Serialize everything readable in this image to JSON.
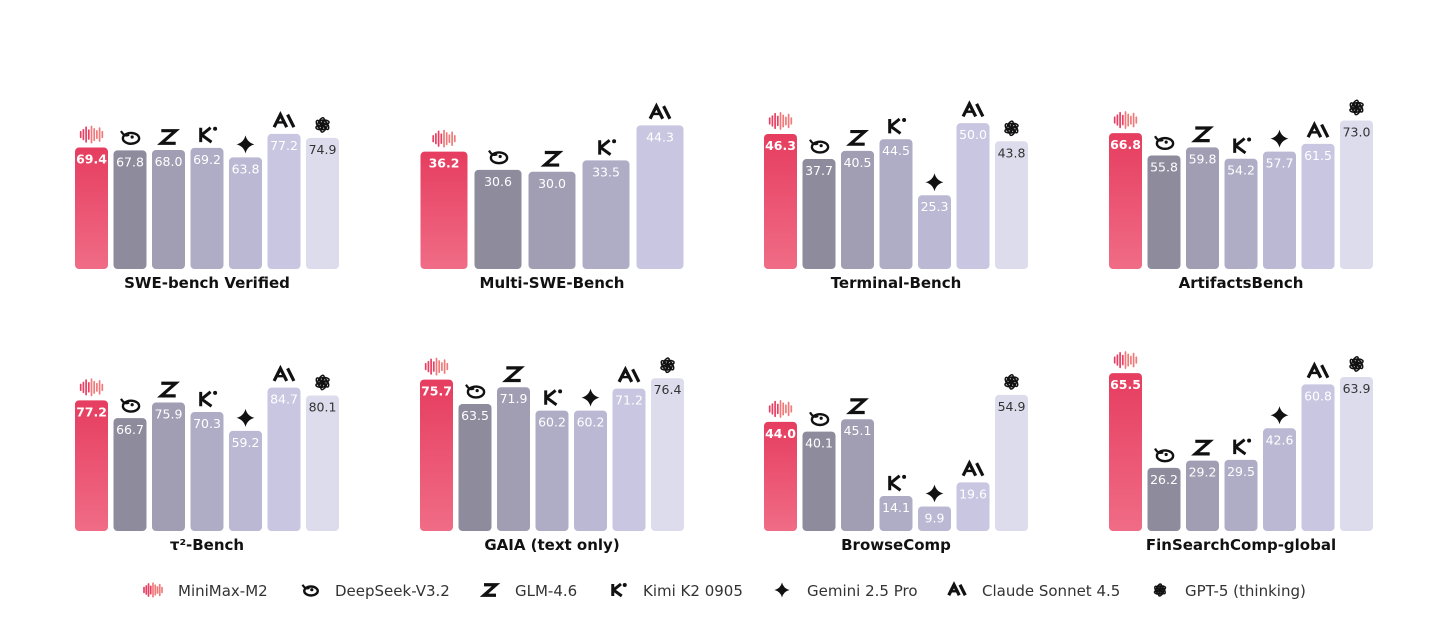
{
  "models": [
    {
      "id": "minimax",
      "name": "MiniMax-M2",
      "icon": "minimax-wave-icon",
      "color_top": "#e63d5f",
      "color_bottom": "#f06c86",
      "label_color": "#ffffff"
    },
    {
      "id": "deepseek",
      "name": "DeepSeek-V3.2",
      "icon": "deepseek-whale-icon",
      "color_top": "#8e8b9d",
      "color_bottom": "#8e8b9d",
      "label_color": "#ffffff"
    },
    {
      "id": "glm",
      "name": "GLM-4.6",
      "icon": "glm-z-icon",
      "color_top": "#a19eb4",
      "color_bottom": "#a19eb4",
      "label_color": "#ffffff"
    },
    {
      "id": "kimi",
      "name": "Kimi K2 0905",
      "icon": "kimi-k-icon",
      "color_top": "#afacc6",
      "color_bottom": "#afacc6",
      "label_color": "#ffffff"
    },
    {
      "id": "gemini",
      "name": "Gemini 2.5 Pro",
      "icon": "gemini-sparkle-icon",
      "color_top": "#bbb8d4",
      "color_bottom": "#bbb8d4",
      "label_color": "#ffffff"
    },
    {
      "id": "claude",
      "name": "Claude Sonnet 4.5",
      "icon": "anthropic-icon",
      "color_top": "#c8c6e0",
      "color_bottom": "#c8c6e0",
      "label_color": "#ffffff"
    },
    {
      "id": "gpt5",
      "name": "GPT-5 (thinking)",
      "icon": "openai-icon",
      "color_top": "#dddcec",
      "color_bottom": "#dddcec",
      "label_color": "#333333"
    }
  ],
  "chart_data": [
    {
      "type": "bar",
      "title": "SWE-bench Verified",
      "categories": [
        "MiniMax-M2",
        "DeepSeek-V3.2",
        "GLM-4.6",
        "Kimi K2 0905",
        "Gemini 2.5 Pro",
        "Claude Sonnet 4.5",
        "GPT-5 (thinking)"
      ],
      "values": [
        69.4,
        67.8,
        68.0,
        69.2,
        63.8,
        77.2,
        74.9
      ],
      "labels": [
        "69.4",
        "67.8",
        "68.0",
        "69.2",
        "63.8",
        "77.2",
        "74.9"
      ],
      "ylim": [
        0,
        100
      ]
    },
    {
      "type": "bar",
      "title": "Multi-SWE-Bench",
      "categories": [
        "MiniMax-M2",
        "DeepSeek-V3.2",
        "GLM-4.6",
        "Kimi K2 0905",
        "Claude Sonnet 4.5"
      ],
      "values": [
        36.2,
        30.6,
        30.0,
        33.5,
        44.3
      ],
      "labels": [
        "36.2",
        "30.6",
        "30.0",
        "33.5",
        "44.3"
      ],
      "ylim": [
        0,
        54
      ]
    },
    {
      "type": "bar",
      "title": "Terminal-Bench",
      "categories": [
        "MiniMax-M2",
        "DeepSeek-V3.2",
        "GLM-4.6",
        "Kimi K2 0905",
        "Gemini 2.5 Pro",
        "Claude Sonnet 4.5",
        "GPT-5 (thinking)"
      ],
      "values": [
        46.3,
        37.7,
        40.5,
        44.5,
        25.3,
        50.0,
        43.8
      ],
      "labels": [
        "46.3",
        "37.7",
        "40.5",
        "44.5",
        "25.3",
        "50.0",
        "43.8"
      ],
      "ylim": [
        0,
        60
      ]
    },
    {
      "type": "bar",
      "title": "ArtifactsBench",
      "categories": [
        "MiniMax-M2",
        "DeepSeek-V3.2",
        "GLM-4.6",
        "Kimi K2 0905",
        "Gemini 2.5 Pro",
        "Claude Sonnet 4.5",
        "GPT-5 (thinking)"
      ],
      "values": [
        66.8,
        55.8,
        59.8,
        54.2,
        57.7,
        61.5,
        73.0
      ],
      "labels": [
        "66.8",
        "55.8",
        "59.8",
        "54.2",
        "57.7",
        "61.5",
        "73.0"
      ],
      "ylim": [
        0,
        86
      ]
    },
    {
      "type": "bar",
      "title": "τ²-Bench",
      "categories": [
        "MiniMax-M2",
        "DeepSeek-V3.2",
        "GLM-4.6",
        "Kimi K2 0905",
        "Gemini 2.5 Pro",
        "Claude Sonnet 4.5",
        "GPT-5 (thinking)"
      ],
      "values": [
        77.2,
        66.7,
        75.9,
        70.3,
        59.2,
        84.7,
        80.1
      ],
      "labels": [
        "77.2",
        "66.7",
        "75.9",
        "70.3",
        "59.2",
        "84.7",
        "80.1"
      ],
      "ylim": [
        0,
        104
      ]
    },
    {
      "type": "bar",
      "title": "GAIA (text only)",
      "categories": [
        "MiniMax-M2",
        "DeepSeek-V3.2",
        "GLM-4.6",
        "Kimi K2 0905",
        "Gemini 2.5 Pro",
        "Claude Sonnet 4.5",
        "GPT-5 (thinking)"
      ],
      "values": [
        75.7,
        63.5,
        71.9,
        60.2,
        60.2,
        71.2,
        76.4
      ],
      "labels": [
        "75.7",
        "63.5",
        "71.9",
        "60.2",
        "60.2",
        "71.2",
        "76.4"
      ],
      "ylim": [
        0,
        88
      ]
    },
    {
      "type": "bar",
      "title": "BrowseComp",
      "categories": [
        "MiniMax-M2",
        "DeepSeek-V3.2",
        "GLM-4.6",
        "Kimi K2 0905",
        "Gemini 2.5 Pro",
        "Claude Sonnet 4.5",
        "GPT-5 (thinking)"
      ],
      "values": [
        44.0,
        40.1,
        45.1,
        14.1,
        9.9,
        19.6,
        54.9
      ],
      "labels": [
        "44.0",
        "40.1",
        "45.1",
        "14.1",
        "9.9",
        "19.6",
        "54.9"
      ],
      "ylim": [
        0,
        71
      ]
    },
    {
      "type": "bar",
      "title": "FinSearchComp-global",
      "categories": [
        "MiniMax-M2",
        "DeepSeek-V3.2",
        "GLM-4.6",
        "Kimi K2 0905",
        "Gemini 2.5 Pro",
        "Claude Sonnet 4.5",
        "GPT-5 (thinking)"
      ],
      "values": [
        65.5,
        26.2,
        29.2,
        29.5,
        42.6,
        60.8,
        63.9
      ],
      "labels": [
        "65.5",
        "26.2",
        "29.2",
        "29.5",
        "42.6",
        "60.8",
        "63.9"
      ],
      "ylim": [
        0,
        73
      ]
    }
  ],
  "legend": {
    "position": "bottom",
    "items": [
      {
        "model": "minimax",
        "label": "MiniMax-M2"
      },
      {
        "model": "deepseek",
        "label": "DeepSeek-V3.2"
      },
      {
        "model": "glm",
        "label": "GLM-4.6"
      },
      {
        "model": "kimi",
        "label": "Kimi K2 0905"
      },
      {
        "model": "gemini",
        "label": "Gemini 2.5 Pro"
      },
      {
        "model": "claude",
        "label": "Claude Sonnet 4.5"
      },
      {
        "model": "gpt5",
        "label": "GPT-5 (thinking)"
      }
    ]
  }
}
